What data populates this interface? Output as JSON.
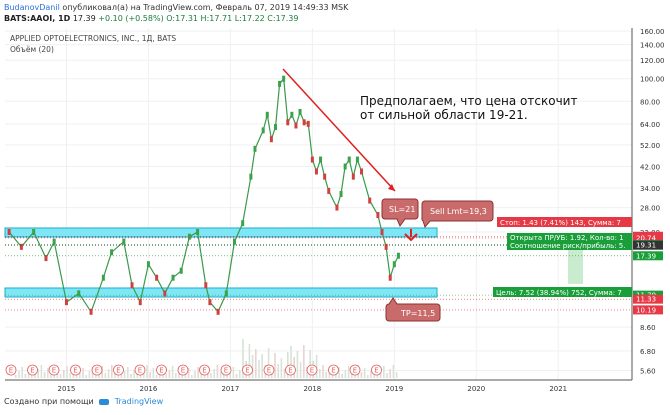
{
  "header": {
    "user": "BudanovDanil",
    "published": "опубликовал(а) на TradingView.com, Февраль 07, 2019 14:49:33 MSK",
    "symbol": "BATS:AAOI, 1D",
    "price": "17.39",
    "change": "+0.10 (+0.58%)",
    "ohlc": "O:17.31 H:17.71 L:17.22 C:17.39"
  },
  "footer": {
    "text": "Создано при помощи",
    "brand": "TradingView"
  },
  "chart_data": {
    "type": "line",
    "title": "APPLIED OPTOELECTRONICS, INC., 1Д, BATS",
    "subtitle": "Объём (20)",
    "yscale": "log",
    "ylim": [
      5.2,
      165
    ],
    "y_ticks": [
      160,
      140,
      120,
      100,
      80,
      64,
      52,
      42,
      34,
      28,
      22,
      8.6,
      6.8,
      5.6
    ],
    "x_ticks": [
      "2015",
      "2016",
      "2017",
      "2018",
      "2019",
      "2020",
      "2021"
    ],
    "xlim": [
      2014.25,
      2021.9
    ],
    "grid": true,
    "series": [
      {
        "x": [
          2014.3,
          2014.45,
          2014.6,
          2014.75,
          2014.85,
          2015.0,
          2015.15,
          2015.3,
          2015.45,
          2015.55,
          2015.7,
          2015.8,
          2015.9,
          2016.0,
          2016.1,
          2016.2,
          2016.3,
          2016.4,
          2016.5,
          2016.6,
          2016.7,
          2016.75,
          2016.85,
          2016.95,
          2017.05,
          2017.15,
          2017.25,
          2017.3,
          2017.4,
          2017.45,
          2017.5,
          2017.55,
          2017.6,
          2017.65,
          2017.7,
          2017.75,
          2017.8,
          2017.85,
          2017.9,
          2017.95,
          2018.0,
          2018.05,
          2018.1,
          2018.15,
          2018.2,
          2018.3,
          2018.35,
          2018.4,
          2018.45,
          2018.5,
          2018.55,
          2018.6,
          2018.7,
          2018.8,
          2018.85,
          2018.9,
          2018.95,
          2019.0,
          2019.05
        ],
        "values": [
          22,
          19,
          22,
          17,
          20,
          11,
          12,
          10,
          14,
          18,
          20,
          13,
          11,
          16,
          14,
          12,
          14,
          15,
          21,
          22,
          13,
          11,
          10,
          12,
          20,
          24,
          38,
          50,
          60,
          70,
          55,
          62,
          95,
          100,
          65,
          70,
          63,
          72,
          65,
          64,
          45,
          40,
          45,
          38,
          33,
          28,
          32,
          42,
          45,
          38,
          45,
          40,
          30,
          26,
          22,
          19,
          14,
          16,
          17.4
        ]
      }
    ],
    "volume_label": "Объём (20)",
    "levels": [
      {
        "label": "21.09",
        "value": 21.09,
        "color": "#e63946"
      },
      {
        "label": "20.74",
        "value": 20.74,
        "color": "#e63946"
      },
      {
        "label": "19.43",
        "value": 19.43,
        "color": "#1a9e3a"
      },
      {
        "label": "19.31",
        "value": 19.31,
        "color": "#333333"
      },
      {
        "label": "17.39",
        "value": 17.39,
        "color": "#1a9e3a"
      },
      {
        "label": "11.79",
        "value": 11.79,
        "color": "#1a9e3a"
      },
      {
        "label": "11.33",
        "value": 11.33,
        "color": "#e63946"
      },
      {
        "label": "10.19",
        "value": 10.19,
        "color": "#e63946"
      }
    ],
    "annotations": {
      "main_text_line1": "Предполагаем, что цена отскочит",
      "main_text_line2": "от сильной области 19-21.",
      "sl": "SL=21",
      "sell": "Sell Lmt=19,3",
      "tp": "TP=11,5",
      "stop_label": "Стоп: 1.43 (7.41%) 143, Сумма: 7",
      "open_label1": "Открыта ПР/УБ: 1.92, Кол-во: 1",
      "open_label2": "Соотношение риск/прибыль: 5.",
      "target_label": "Цель: 7.52 (38.94%) 752, Сумма: 7",
      "earnings_marker": "E"
    }
  }
}
